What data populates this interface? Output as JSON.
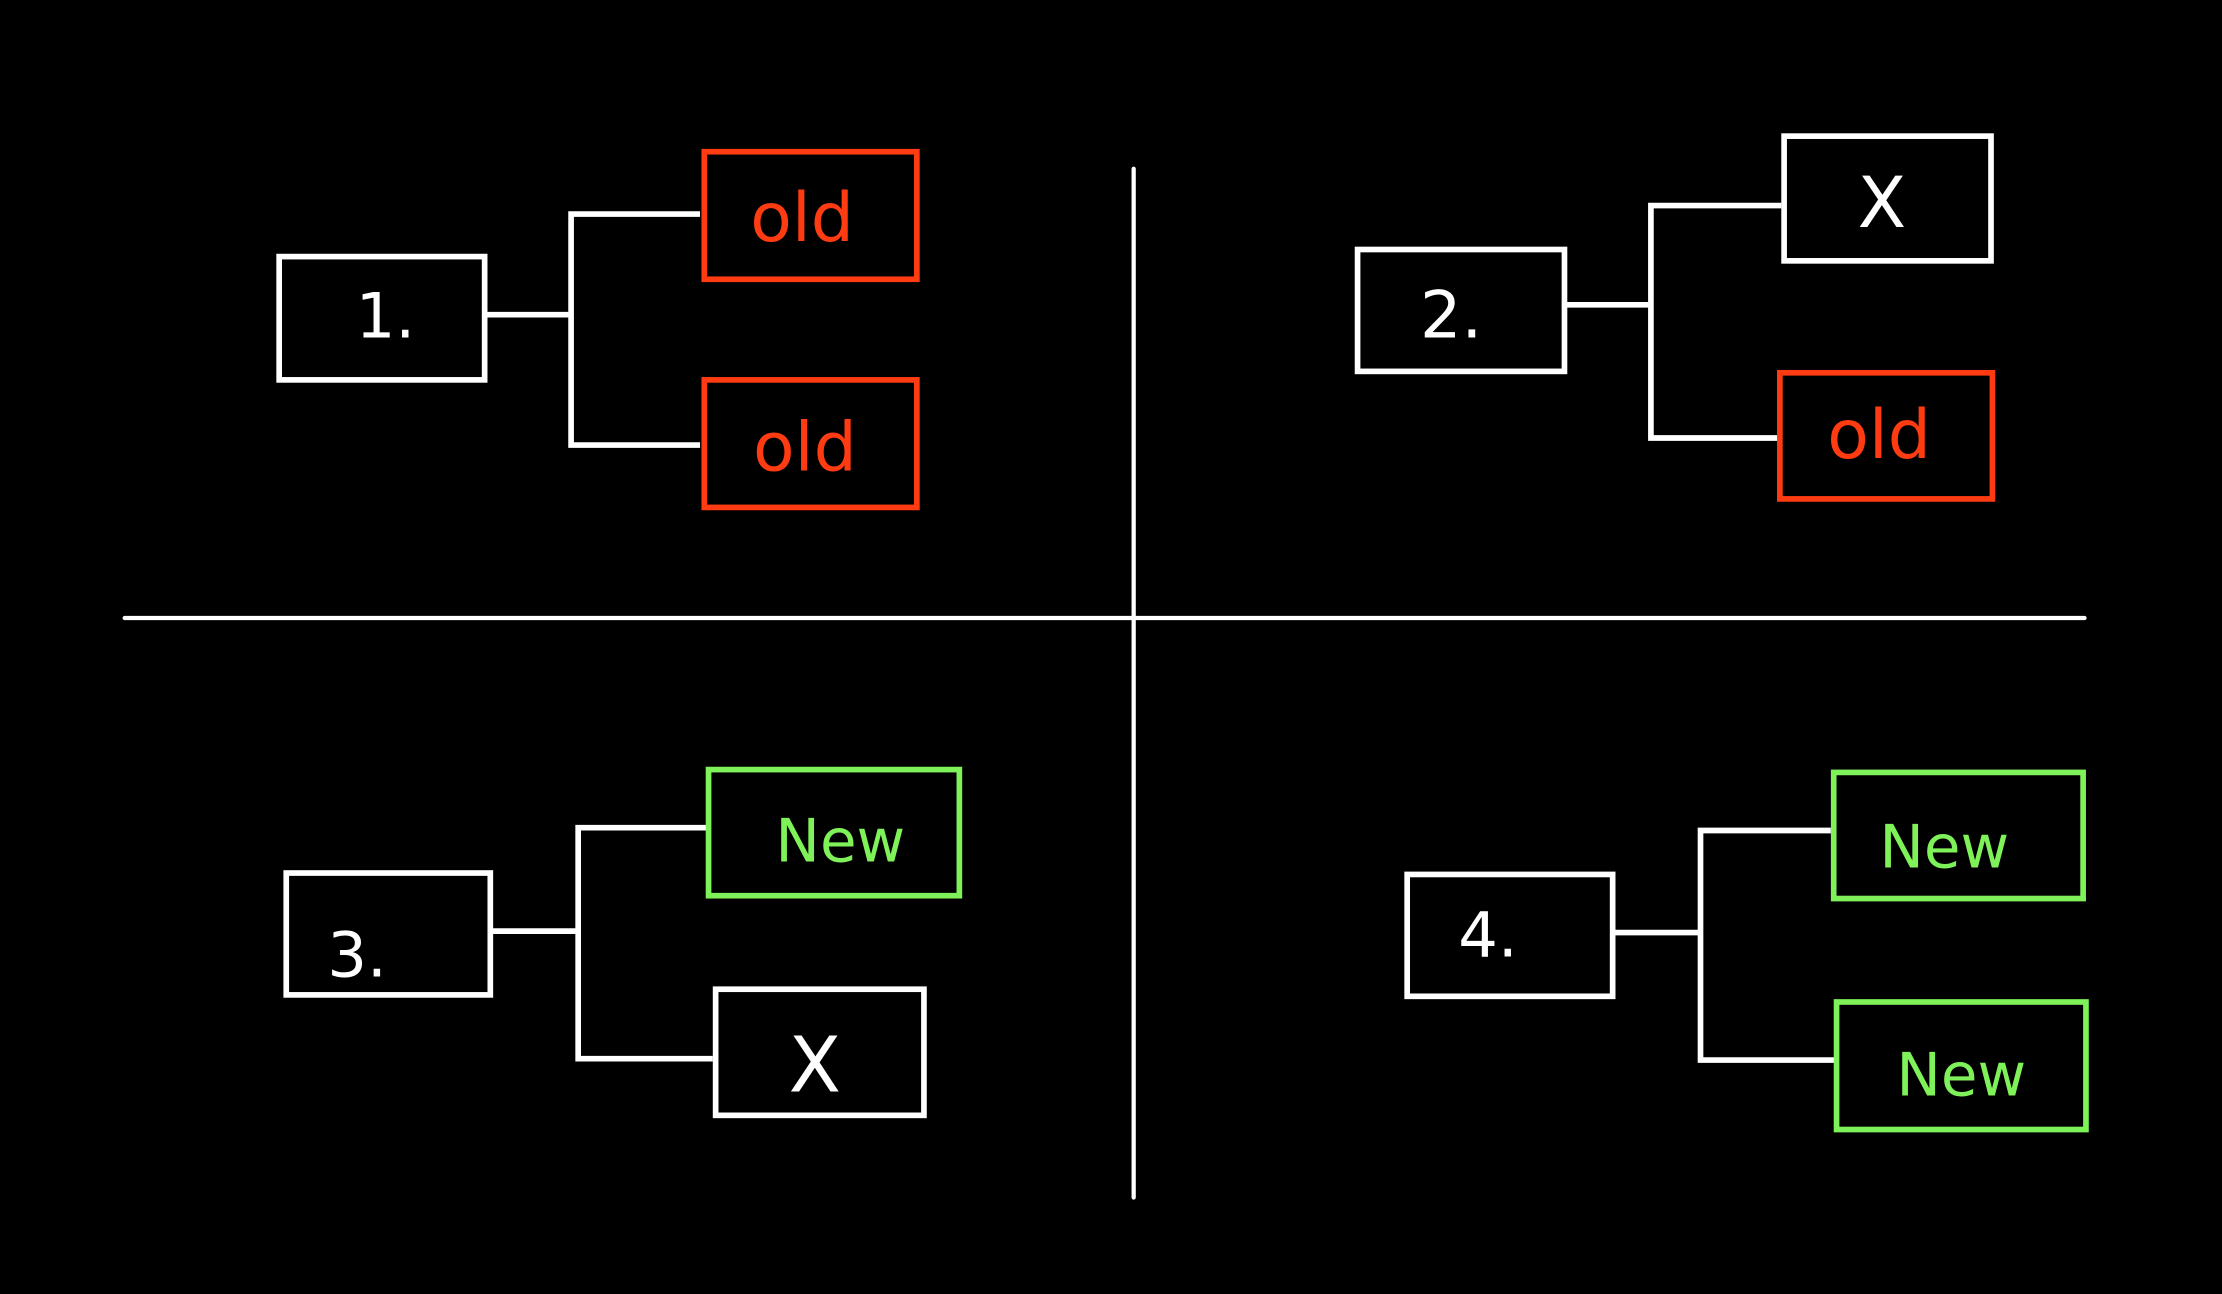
{
  "colors": {
    "background": "#000000",
    "line": "#ffffff",
    "old": "#ff3b12",
    "new": "#7ff25a",
    "none": "#ffffff"
  },
  "quadrants": [
    {
      "label": "1.",
      "children": [
        {
          "kind": "old",
          "text": "old"
        },
        {
          "kind": "old",
          "text": "old"
        }
      ]
    },
    {
      "label": "2.",
      "children": [
        {
          "kind": "none",
          "text": "X"
        },
        {
          "kind": "old",
          "text": "old"
        }
      ]
    },
    {
      "label": "3.",
      "children": [
        {
          "kind": "new",
          "text": "New"
        },
        {
          "kind": "none",
          "text": "X"
        }
      ]
    },
    {
      "label": "4.",
      "children": [
        {
          "kind": "new",
          "text": "New"
        },
        {
          "kind": "new",
          "text": "New"
        }
      ]
    }
  ]
}
